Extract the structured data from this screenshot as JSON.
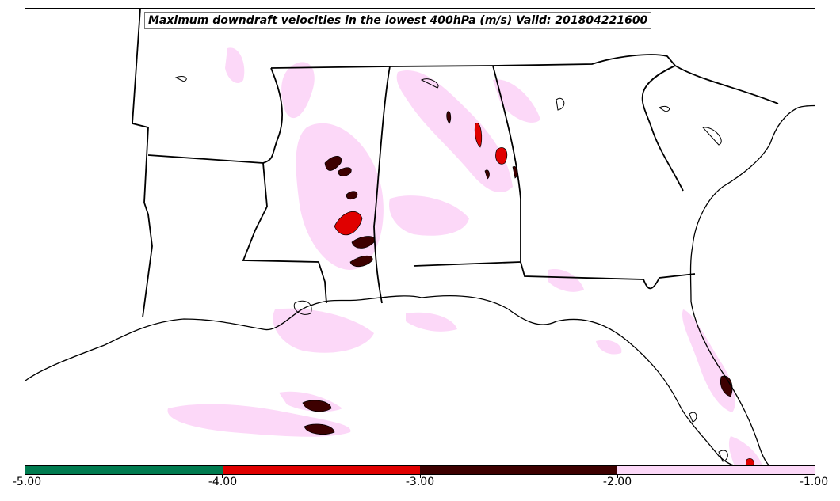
{
  "title": "Maximum downdraft velocities in the lowest 400hPa (m/s) Valid: 201804221600",
  "colorbar": {
    "segments": [
      {
        "range": [
          -5.0,
          -4.0
        ],
        "color": "#007b4f"
      },
      {
        "range": [
          -4.0,
          -3.0
        ],
        "color": "#e00000"
      },
      {
        "range": [
          -3.0,
          -2.0
        ],
        "color": "#3d0000"
      },
      {
        "range": [
          -2.0,
          -1.0
        ],
        "color": "#fcd8f8"
      }
    ],
    "tick_labels": [
      "-5.00",
      "-4.00",
      "-3.00",
      "-2.00",
      "-1.00"
    ]
  },
  "colors": {
    "coastline": "#000000",
    "state_border": "#000000",
    "light_pink": "#fcd8f8",
    "red": "#e00000",
    "dark_red": "#3d0000"
  }
}
